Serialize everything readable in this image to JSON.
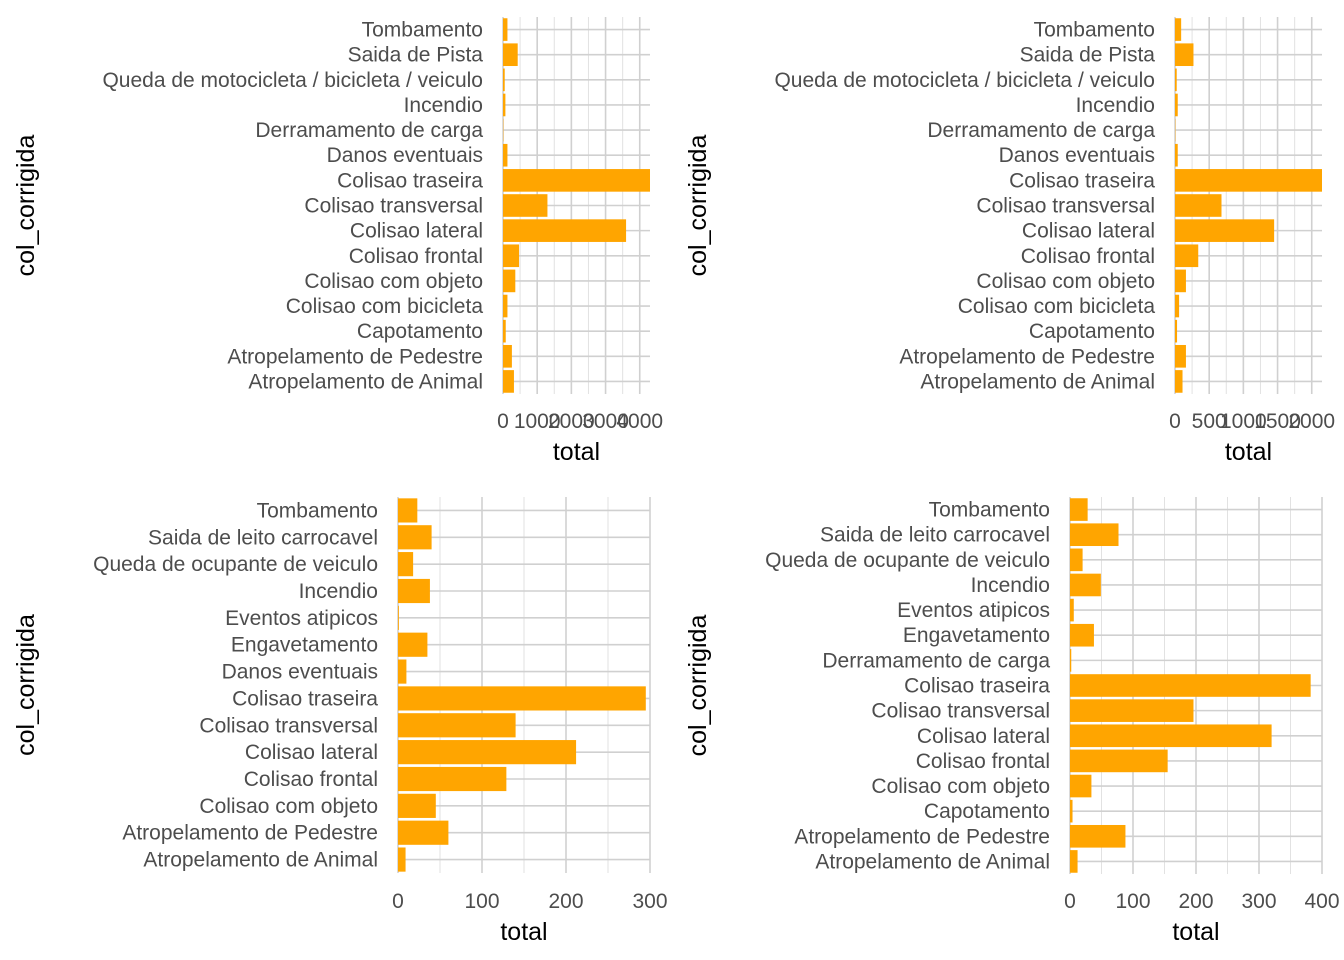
{
  "chart_data": [
    {
      "type": "bar",
      "orientation": "horizontal",
      "ylabel": "col_corrigida",
      "xlabel": "total",
      "xlim": [
        0,
        4300
      ],
      "xticks": [
        0,
        1000,
        2000,
        3000,
        4000
      ],
      "xtick_labels": [
        "0",
        "1000",
        "2000",
        "3000",
        "4000"
      ],
      "categories": [
        "Tombamento",
        "Saida de Pista",
        "Queda de motocicleta / bicicleta / veiculo",
        "Incendio",
        "Derramamento de carga",
        "Danos eventuais",
        "Colisao traseira",
        "Colisao transversal",
        "Colisao lateral",
        "Colisao frontal",
        "Colisao com objeto",
        "Colisao com bicicleta",
        "Capotamento",
        "Atropelamento de Pedestre",
        "Atropelamento de Animal"
      ],
      "values": [
        130,
        430,
        50,
        70,
        10,
        130,
        4300,
        1300,
        3600,
        470,
        360,
        130,
        80,
        260,
        320
      ],
      "bar_color": "#FFA500"
    },
    {
      "type": "bar",
      "orientation": "horizontal",
      "ylabel": "col_corrigida",
      "xlabel": "total",
      "xlim": [
        0,
        2150
      ],
      "xticks": [
        0,
        500,
        1000,
        1500,
        2000
      ],
      "xtick_labels": [
        "0",
        "500",
        "1000",
        "1500",
        "2000"
      ],
      "categories": [
        "Tombamento",
        "Saida de Pista",
        "Queda de motocicleta / bicicleta / veiculo",
        "Incendio",
        "Derramamento de carga",
        "Danos eventuais",
        "Colisao traseira",
        "Colisao transversal",
        "Colisao lateral",
        "Colisao frontal",
        "Colisao com objeto",
        "Colisao com bicicleta",
        "Capotamento",
        "Atropelamento de Pedestre",
        "Atropelamento de Animal"
      ],
      "values": [
        90,
        270,
        25,
        40,
        5,
        40,
        2150,
        680,
        1450,
        340,
        160,
        60,
        30,
        160,
        110
      ],
      "bar_color": "#FFA500"
    },
    {
      "type": "bar",
      "orientation": "horizontal",
      "ylabel": "col_corrigida",
      "xlabel": "total",
      "xlim": [
        0,
        300
      ],
      "xticks": [
        0,
        100,
        200,
        300
      ],
      "xtick_labels": [
        "0",
        "100",
        "200",
        "300"
      ],
      "categories": [
        "Tombamento",
        "Saida de leito carrocavel",
        "Queda de ocupante de veiculo",
        "Incendio",
        "Eventos atipicos",
        "Engavetamento",
        "Danos eventuais",
        "Colisao traseira",
        "Colisao transversal",
        "Colisao lateral",
        "Colisao frontal",
        "Colisao com objeto",
        "Atropelamento de Pedestre",
        "Atropelamento de Animal"
      ],
      "values": [
        23,
        40,
        18,
        38,
        1,
        35,
        10,
        295,
        140,
        212,
        129,
        45,
        60,
        9
      ],
      "bar_color": "#FFA500"
    },
    {
      "type": "bar",
      "orientation": "horizontal",
      "ylabel": "col_corrigida",
      "xlabel": "total",
      "xlim": [
        0,
        400
      ],
      "xticks": [
        0,
        100,
        200,
        300,
        400
      ],
      "xtick_labels": [
        "0",
        "100",
        "200",
        "300",
        "400"
      ],
      "categories": [
        "Tombamento",
        "Saida de leito carrocavel",
        "Queda de ocupante de veiculo",
        "Incendio",
        "Eventos atipicos",
        "Engavetamento",
        "Derramamento de carga",
        "Colisao traseira",
        "Colisao transversal",
        "Colisao lateral",
        "Colisao frontal",
        "Colisao com objeto",
        "Capotamento",
        "Atropelamento de Pedestre",
        "Atropelamento de Animal"
      ],
      "values": [
        28,
        77,
        20,
        49,
        6,
        38,
        2,
        382,
        196,
        320,
        155,
        34,
        4,
        88,
        12
      ],
      "bar_color": "#FFA500"
    }
  ]
}
